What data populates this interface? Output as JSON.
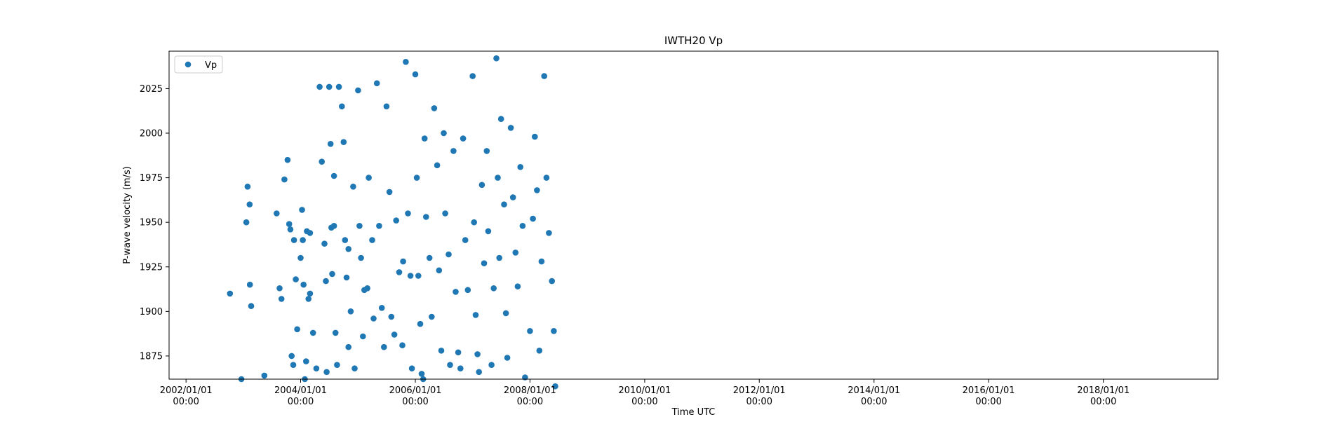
{
  "chart_data": {
    "type": "scatter",
    "title": "IWTH20 Vp",
    "xlabel": "Time UTC",
    "ylabel": "P-wave velocity (m/s)",
    "xlim": [
      "2001-09-15",
      "2020-01-01"
    ],
    "ylim": [
      1862,
      2046
    ],
    "x_ticks": [
      {
        "date": "2002-01-01",
        "line1": "2002/01/01",
        "line2": "00:00"
      },
      {
        "date": "2004-01-01",
        "line1": "2004/01/01",
        "line2": "00:00"
      },
      {
        "date": "2006-01-01",
        "line1": "2006/01/01",
        "line2": "00:00"
      },
      {
        "date": "2008-01-01",
        "line1": "2008/01/01",
        "line2": "00:00"
      },
      {
        "date": "2010-01-01",
        "line1": "2010/01/01",
        "line2": "00:00"
      },
      {
        "date": "2012-01-01",
        "line1": "2012/01/01",
        "line2": "00:00"
      },
      {
        "date": "2014-01-01",
        "line1": "2014/01/01",
        "line2": "00:00"
      },
      {
        "date": "2016-01-01",
        "line1": "2016/01/01",
        "line2": "00:00"
      },
      {
        "date": "2018-01-01",
        "line1": "2018/01/01",
        "line2": "00:00"
      }
    ],
    "y_ticks": [
      1875,
      1900,
      1925,
      1950,
      1975,
      2000,
      2025
    ],
    "grid": false,
    "legend": {
      "position": "top-left",
      "entries": [
        "Vp"
      ]
    },
    "series": [
      {
        "name": "Vp",
        "color": "#1f77b4",
        "points": [
          [
            "2002-10-08",
            1910
          ],
          [
            "2002-12-20",
            1862
          ],
          [
            "2003-01-28",
            1970
          ],
          [
            "2003-02-12",
            1915
          ],
          [
            "2003-02-20",
            1903
          ],
          [
            "2003-01-20",
            1950
          ],
          [
            "2003-02-10",
            1960
          ],
          [
            "2003-05-15",
            1864
          ],
          [
            "2003-08-01",
            1955
          ],
          [
            "2003-08-20",
            1913
          ],
          [
            "2003-09-01",
            1907
          ],
          [
            "2003-09-20",
            1974
          ],
          [
            "2003-10-10",
            1985
          ],
          [
            "2003-10-20",
            1949
          ],
          [
            "2003-10-28",
            1946
          ],
          [
            "2003-11-05",
            1875
          ],
          [
            "2003-11-15",
            1870
          ],
          [
            "2003-11-20",
            1940
          ],
          [
            "2003-12-01",
            1918
          ],
          [
            "2003-12-10",
            1890
          ],
          [
            "2004-01-01",
            1930
          ],
          [
            "2004-01-10",
            1957
          ],
          [
            "2004-01-15",
            1940
          ],
          [
            "2004-01-20",
            1915
          ],
          [
            "2004-01-28",
            1862
          ],
          [
            "2004-02-05",
            1872
          ],
          [
            "2004-02-10",
            1945
          ],
          [
            "2004-02-20",
            1907
          ],
          [
            "2004-03-01",
            1944
          ],
          [
            "2004-03-01",
            1910
          ],
          [
            "2004-03-20",
            1888
          ],
          [
            "2004-04-10",
            1868
          ],
          [
            "2004-05-01",
            2026
          ],
          [
            "2004-05-15",
            1984
          ],
          [
            "2004-06-01",
            1938
          ],
          [
            "2004-06-10",
            1917
          ],
          [
            "2004-06-15",
            1866
          ],
          [
            "2004-07-01",
            2026
          ],
          [
            "2004-07-10",
            1994
          ],
          [
            "2004-07-15",
            1947
          ],
          [
            "2004-07-20",
            1921
          ],
          [
            "2004-08-01",
            1976
          ],
          [
            "2004-08-01",
            1948
          ],
          [
            "2004-08-10",
            1888
          ],
          [
            "2004-08-20",
            1870
          ],
          [
            "2004-09-01",
            2026
          ],
          [
            "2004-09-20",
            2015
          ],
          [
            "2004-10-01",
            1995
          ],
          [
            "2004-10-10",
            1940
          ],
          [
            "2004-10-20",
            1919
          ],
          [
            "2004-11-01",
            1935
          ],
          [
            "2004-11-01",
            1880
          ],
          [
            "2004-11-15",
            1900
          ],
          [
            "2004-12-01",
            1970
          ],
          [
            "2004-12-10",
            1868
          ],
          [
            "2005-01-01",
            2024
          ],
          [
            "2005-01-10",
            1948
          ],
          [
            "2005-01-20",
            1930
          ],
          [
            "2005-02-01",
            1886
          ],
          [
            "2005-02-10",
            1912
          ],
          [
            "2005-03-01",
            1913
          ],
          [
            "2005-03-10",
            1975
          ],
          [
            "2005-04-01",
            1940
          ],
          [
            "2005-04-10",
            1896
          ],
          [
            "2005-05-01",
            2028
          ],
          [
            "2005-05-15",
            1948
          ],
          [
            "2005-06-01",
            1902
          ],
          [
            "2005-06-15",
            1880
          ],
          [
            "2005-07-01",
            2015
          ],
          [
            "2005-07-20",
            1967
          ],
          [
            "2005-08-01",
            1897
          ],
          [
            "2005-08-20",
            1887
          ],
          [
            "2005-09-01",
            1951
          ],
          [
            "2005-09-20",
            1922
          ],
          [
            "2005-10-10",
            1881
          ],
          [
            "2005-10-15",
            1928
          ],
          [
            "2005-11-01",
            2040
          ],
          [
            "2005-11-15",
            1955
          ],
          [
            "2005-12-01",
            1920
          ],
          [
            "2005-12-10",
            1868
          ],
          [
            "2006-01-01",
            2033
          ],
          [
            "2006-01-10",
            1975
          ],
          [
            "2006-01-20",
            1920
          ],
          [
            "2006-02-01",
            1893
          ],
          [
            "2006-02-10",
            1865
          ],
          [
            "2006-02-20",
            1862
          ],
          [
            "2006-03-01",
            1997
          ],
          [
            "2006-03-10",
            1953
          ],
          [
            "2006-04-01",
            1930
          ],
          [
            "2006-04-15",
            1897
          ],
          [
            "2006-05-01",
            2014
          ],
          [
            "2006-05-20",
            1982
          ],
          [
            "2006-06-01",
            1923
          ],
          [
            "2006-06-15",
            1878
          ],
          [
            "2006-07-01",
            2000
          ],
          [
            "2006-07-10",
            1955
          ],
          [
            "2006-08-01",
            1932
          ],
          [
            "2006-08-10",
            1870
          ],
          [
            "2006-09-01",
            1990
          ],
          [
            "2006-09-15",
            1911
          ],
          [
            "2006-10-01",
            1877
          ],
          [
            "2006-10-15",
            1868
          ],
          [
            "2006-11-01",
            1997
          ],
          [
            "2006-11-15",
            1940
          ],
          [
            "2006-12-01",
            1912
          ],
          [
            "2007-01-01",
            2032
          ],
          [
            "2007-01-10",
            1950
          ],
          [
            "2007-01-20",
            1898
          ],
          [
            "2007-02-01",
            1876
          ],
          [
            "2007-02-10",
            1866
          ],
          [
            "2007-03-01",
            1971
          ],
          [
            "2007-03-15",
            1927
          ],
          [
            "2007-04-01",
            1990
          ],
          [
            "2007-04-10",
            1945
          ],
          [
            "2007-05-01",
            1870
          ],
          [
            "2007-05-15",
            1913
          ],
          [
            "2007-06-01",
            2042
          ],
          [
            "2007-06-10",
            1975
          ],
          [
            "2007-06-20",
            1930
          ],
          [
            "2007-07-01",
            2008
          ],
          [
            "2007-07-20",
            1960
          ],
          [
            "2007-08-01",
            1899
          ],
          [
            "2007-08-10",
            1874
          ],
          [
            "2007-09-01",
            2003
          ],
          [
            "2007-09-15",
            1964
          ],
          [
            "2007-10-01",
            1933
          ],
          [
            "2007-10-15",
            1914
          ],
          [
            "2007-11-01",
            1981
          ],
          [
            "2007-11-15",
            1948
          ],
          [
            "2007-12-01",
            1863
          ],
          [
            "2008-01-01",
            1889
          ],
          [
            "2008-01-20",
            1952
          ],
          [
            "2008-02-01",
            1998
          ],
          [
            "2008-02-15",
            1968
          ],
          [
            "2008-03-01",
            1878
          ],
          [
            "2008-03-15",
            1928
          ],
          [
            "2008-04-01",
            2032
          ],
          [
            "2008-04-15",
            1975
          ],
          [
            "2008-05-01",
            1944
          ],
          [
            "2008-05-20",
            1917
          ],
          [
            "2008-06-01",
            1889
          ],
          [
            "2008-06-10",
            1858
          ]
        ]
      }
    ]
  }
}
